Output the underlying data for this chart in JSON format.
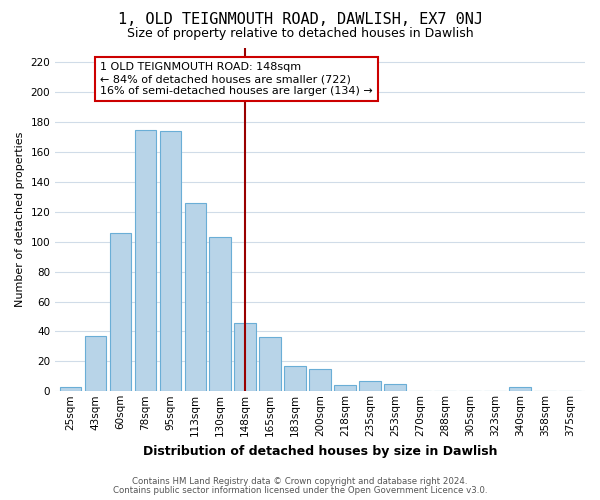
{
  "title": "1, OLD TEIGNMOUTH ROAD, DAWLISH, EX7 0NJ",
  "subtitle": "Size of property relative to detached houses in Dawlish",
  "xlabel": "Distribution of detached houses by size in Dawlish",
  "ylabel": "Number of detached properties",
  "bar_labels": [
    "25sqm",
    "43sqm",
    "60sqm",
    "78sqm",
    "95sqm",
    "113sqm",
    "130sqm",
    "148sqm",
    "165sqm",
    "183sqm",
    "200sqm",
    "218sqm",
    "235sqm",
    "253sqm",
    "270sqm",
    "288sqm",
    "305sqm",
    "323sqm",
    "340sqm",
    "358sqm",
    "375sqm"
  ],
  "bar_values": [
    3,
    37,
    106,
    175,
    174,
    126,
    103,
    46,
    36,
    17,
    15,
    4,
    7,
    5,
    0,
    0,
    0,
    0,
    3,
    0,
    0
  ],
  "highlight_index": 7,
  "bar_color": "#b8d4e8",
  "bar_edge_color": "#6aaed6",
  "vline_color": "#990000",
  "annotation_title": "1 OLD TEIGNMOUTH ROAD: 148sqm",
  "annotation_line1": "← 84% of detached houses are smaller (722)",
  "annotation_line2": "16% of semi-detached houses are larger (134) →",
  "annotation_box_color": "#ffffff",
  "annotation_box_edge": "#cc0000",
  "ylim": [
    0,
    230
  ],
  "yticks": [
    0,
    20,
    40,
    60,
    80,
    100,
    120,
    140,
    160,
    180,
    200,
    220
  ],
  "footer1": "Contains HM Land Registry data © Crown copyright and database right 2024.",
  "footer2": "Contains public sector information licensed under the Open Government Licence v3.0.",
  "bg_color": "#ffffff",
  "plot_bg_color": "#ffffff",
  "grid_color": "#d0dce8",
  "title_fontsize": 11,
  "subtitle_fontsize": 9,
  "ylabel_fontsize": 8,
  "xlabel_fontsize": 9,
  "annotation_fontsize": 8,
  "tick_fontsize": 7.5
}
